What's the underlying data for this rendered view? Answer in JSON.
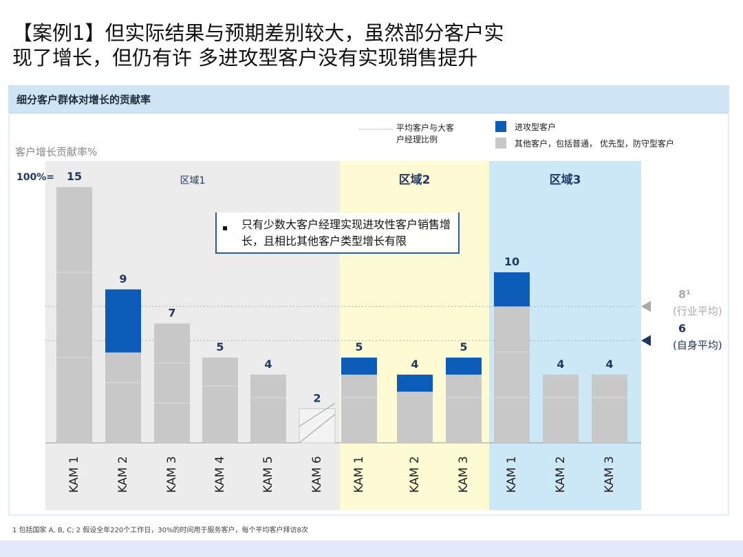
{
  "title": {
    "line1": "【案例1】但实际结果与预期差别较大，虽然部分客户实",
    "line2": "现了增长，但仍有许 多进攻型客户没有实现销售提升"
  },
  "panel": {
    "header": "细分客户群体对增长的贡献率"
  },
  "chart_data": {
    "type": "bar",
    "stacked": true,
    "ylabel": "客户增长贡献率%",
    "total_label": "100%=",
    "legend": {
      "avg_ratio_label": "平均客户与大客户经理比例",
      "series_aggressive": "进攻型客户",
      "series_other": "其他客户，包括普通， 优先型，防守型客户"
    },
    "regions": [
      {
        "name": "区域1"
      },
      {
        "name": "区域2"
      },
      {
        "name": "区域3"
      }
    ],
    "categories": [
      "KAM 1",
      "KAM 2",
      "KAM 3",
      "KAM 4",
      "KAM 5",
      "KAM 6",
      "KAM 1",
      "KAM 2",
      "KAM 3",
      "KAM 1",
      "KAM 2",
      "KAM 3"
    ],
    "region_of_category": [
      0,
      0,
      0,
      0,
      0,
      0,
      1,
      1,
      1,
      2,
      2,
      2
    ],
    "totals": [
      15,
      9,
      7,
      5,
      4,
      2,
      5,
      4,
      5,
      10,
      4,
      4
    ],
    "series": [
      {
        "name": "进攻型客户",
        "values": [
          0,
          3.7,
          0,
          0,
          0,
          0,
          1,
          1,
          1,
          2,
          0,
          0
        ]
      },
      {
        "name": "其他客户",
        "values": [
          15,
          5.3,
          7,
          5,
          4,
          2,
          4,
          3,
          4,
          8,
          4,
          4
        ]
      }
    ],
    "reference_lines": [
      {
        "value": 8,
        "label": "8¹",
        "sublabel": "(行业平均)"
      },
      {
        "value": 6,
        "label": "6",
        "sublabel": "(自身平均)"
      }
    ],
    "ylim": [
      0,
      15
    ],
    "colors": {
      "aggressive": "#0a5cb8",
      "other": "#c8c8c8",
      "region1_bg": "#ececec",
      "region2_bg": "#fdfbd4",
      "region3_bg": "#cce8f7",
      "ref_industry": "#aaaaaa",
      "ref_own": "#1f3864"
    }
  },
  "callout": {
    "text": "只有少数大客户经理实现进攻性客户销售增长，且相比其他客户类型增长有限"
  },
  "footnote": "1 包括国家 A, B, C; 2 假设全年220个工作日，30%的时间用于服务客户，每个平均客户拜访8次"
}
